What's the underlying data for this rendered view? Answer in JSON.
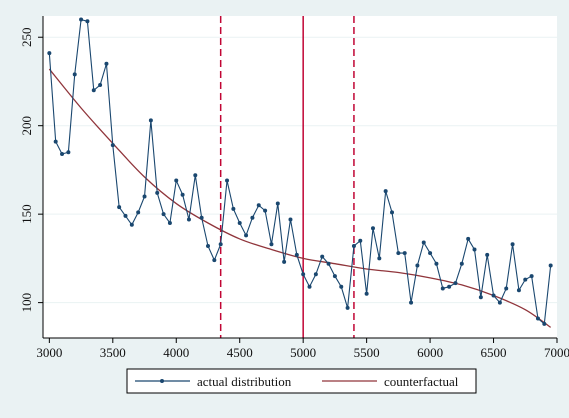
{
  "chart_data": {
    "type": "line",
    "title": "",
    "xlabel": "",
    "ylabel": "",
    "xlim": [
      2950,
      7000
    ],
    "ylim": [
      80,
      262
    ],
    "x_ticks": [
      3000,
      3500,
      4000,
      4500,
      5000,
      5500,
      6000,
      6500,
      7000
    ],
    "y_ticks": [
      100,
      150,
      200,
      250
    ],
    "grid": "horizontal",
    "legend_position": "bottom",
    "colors": {
      "background": "#eaf2f3",
      "plot_area": "#ffffff",
      "actual": "#1a476f",
      "counterfactual": "#90353b",
      "vline": "#c10534",
      "grid": "#eaf2f3"
    },
    "vertical_lines": [
      {
        "x": 4350,
        "style": "dashed"
      },
      {
        "x": 5000,
        "style": "solid"
      },
      {
        "x": 5400,
        "style": "dashed"
      }
    ],
    "series": [
      {
        "name": "actual distribution",
        "style": "line-markers",
        "x": [
          3000,
          3050,
          3100,
          3150,
          3200,
          3250,
          3300,
          3350,
          3400,
          3450,
          3500,
          3550,
          3600,
          3650,
          3700,
          3750,
          3800,
          3850,
          3900,
          3950,
          4000,
          4050,
          4100,
          4150,
          4200,
          4250,
          4300,
          4350,
          4400,
          4450,
          4500,
          4550,
          4600,
          4650,
          4700,
          4750,
          4800,
          4850,
          4900,
          4950,
          5000,
          5050,
          5100,
          5150,
          5200,
          5250,
          5300,
          5350,
          5400,
          5450,
          5500,
          5550,
          5600,
          5650,
          5700,
          5750,
          5800,
          5850,
          5900,
          5950,
          6000,
          6050,
          6100,
          6150,
          6200,
          6250,
          6300,
          6350,
          6400,
          6450,
          6500,
          6550,
          6600,
          6650,
          6700,
          6750,
          6800,
          6850,
          6900,
          6950
        ],
        "y": [
          241,
          191,
          184,
          185,
          229,
          260,
          259,
          220,
          223,
          235,
          189,
          154,
          149,
          144,
          151,
          160,
          203,
          162,
          150,
          145,
          169,
          161,
          147,
          172,
          148,
          132,
          124,
          133,
          169,
          153,
          145,
          138,
          148,
          155,
          152,
          133,
          156,
          123,
          147,
          127,
          116,
          109,
          116,
          126,
          122,
          115,
          109,
          97,
          132,
          135,
          105,
          142,
          125,
          163,
          151,
          128,
          128,
          100,
          121,
          134,
          128,
          122,
          108,
          109,
          111,
          122,
          136,
          130,
          103,
          127,
          104,
          100,
          108,
          133,
          107,
          113,
          115,
          91,
          88,
          121
        ]
      },
      {
        "name": "counterfactual",
        "style": "line",
        "x": [
          3000,
          3250,
          3500,
          3750,
          4000,
          4250,
          4500,
          4750,
          5000,
          5250,
          5500,
          5750,
          6000,
          6250,
          6500,
          6750,
          6950
        ],
        "y": [
          232,
          210,
          190,
          171,
          156,
          145,
          136,
          130,
          125,
          122,
          119,
          117,
          114,
          110,
          104,
          96,
          86
        ]
      }
    ]
  }
}
